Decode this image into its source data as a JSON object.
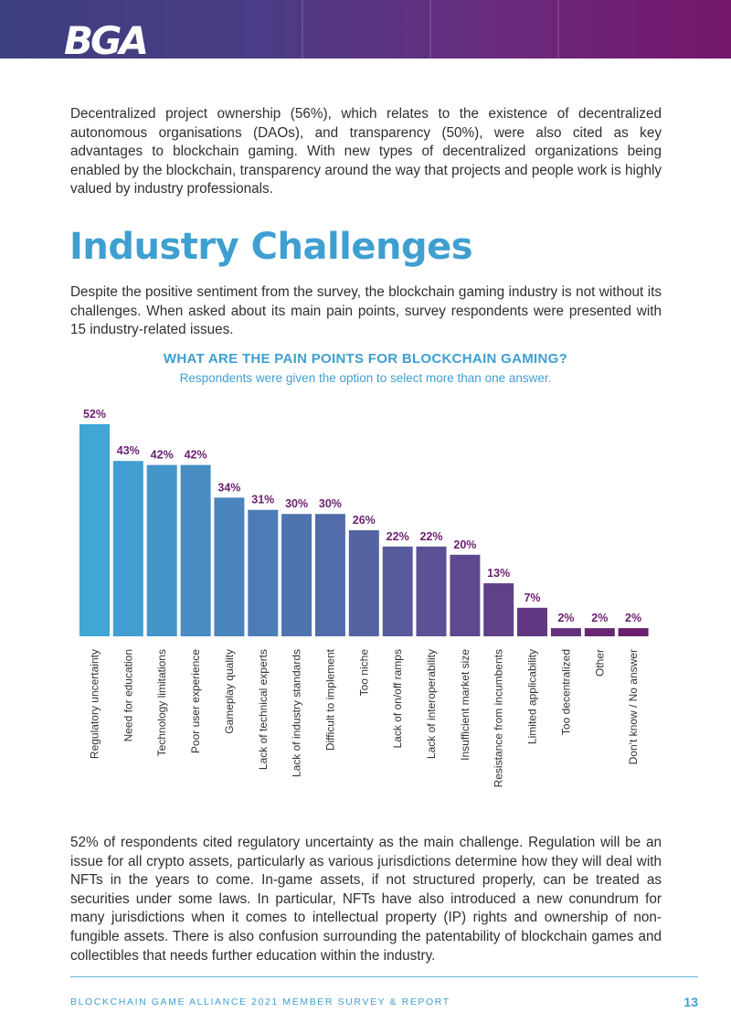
{
  "header": {
    "logo_text": "BGA"
  },
  "intro_paragraph": "Decentralized project ownership (56%), which relates to the existence of decentralized autonomous organisations (DAOs), and transparency (50%), were also cited as key advantages to blockchain gaming. With new types of decentralized organizations being enabled by the blockchain, transparency around the way that projects and people work is highly valued by industry professionals.",
  "section_title": "Industry Challenges",
  "section_paragraph": "Despite the positive sentiment from the survey, the blockchain gaming industry is not without its challenges. When asked about its main pain points, survey respondents were presented with 15 industry-related issues.",
  "closing_paragraph": "52% of respondents cited regulatory uncertainty as the main challenge. Regulation will be an issue for all crypto assets, particularly as various jurisdictions determine how they will deal with NFTs in the years to come. In-game assets, if not structured properly, can be treated as securities under some laws. In particular, NFTs have also introduced a new conundrum for many jurisdictions when it comes to intellectual property (IP) rights and ownership of non-fungible assets. There is also confusion surrounding the patentability of blockchain games and collectibles that needs further education within the industry.",
  "footer": {
    "text": "BLOCKCHAIN GAME ALLIANCE 2021 MEMBER SURVEY & REPORT",
    "page_number": "13"
  },
  "colors": {
    "accent_blue": "#3f9fd0",
    "bar_start": "#3fa6d6",
    "bar_end": "#6a1f6e",
    "value_label": "#6a1f6e"
  },
  "chart_data": {
    "type": "bar",
    "title": "WHAT ARE THE PAIN POINTS FOR BLOCKCHAIN GAMING?",
    "subtitle": "Respondents were given the option to select more than one answer.",
    "categories": [
      "Regulatory uncertainty",
      "Need for education",
      "Technology limitations",
      "Poor user experience",
      "Gameplay quality",
      "Lack of technical experts",
      "Lack of industry standards",
      "Difficult to implement",
      "Too niche",
      "Lack of on/off ramps",
      "Lack of interoperability",
      "Insufficient market size",
      "Resistance from incumbents",
      "Limited applicability",
      "Too decentralized",
      "Other",
      "Don't know / No answer"
    ],
    "values": [
      52,
      43,
      42,
      42,
      34,
      31,
      30,
      30,
      26,
      22,
      22,
      20,
      13,
      7,
      2,
      2,
      2
    ],
    "value_suffix": "%",
    "xlabel": "",
    "ylabel": "",
    "ylim": [
      0,
      52
    ],
    "grid": false,
    "legend": "none"
  }
}
